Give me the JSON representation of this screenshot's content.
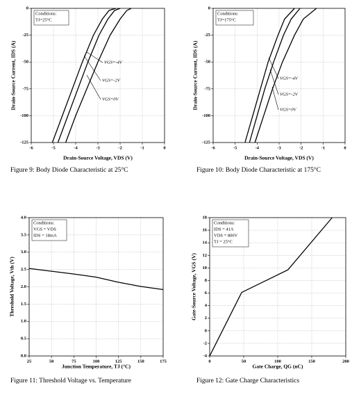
{
  "chart_data": [
    {
      "type": "line",
      "title": "Figure 9: Body Diode Characteristic at 25°C",
      "x_label": "Drain-Source Voltage, VDS (V)",
      "y_label": "Drain-Source Current, IDS (A)",
      "annotations": [
        "Conditions:",
        "TJ=25°C"
      ],
      "xlim": [
        -6,
        0
      ],
      "ylim": [
        -125,
        0
      ],
      "xticks": [
        -6,
        -5,
        -4,
        -3,
        -2,
        -1,
        0
      ],
      "yticks": [
        -125,
        -100,
        -75,
        -50,
        -25,
        0
      ],
      "grid": true,
      "series": [
        {
          "name": "VGS=-4V",
          "color": "#000000",
          "x": [
            -5.05,
            -4.6,
            -4.15,
            -3.7,
            -3.2,
            -2.8,
            -2.5,
            -2.2
          ],
          "values": [
            -125,
            -100,
            -75,
            -50,
            -25,
            -10,
            -2,
            0
          ]
        },
        {
          "name": "VGS=-2V",
          "color": "#000000",
          "x": [
            -4.8,
            -4.35,
            -3.9,
            -3.45,
            -2.95,
            -2.55,
            -2.25,
            -2.0
          ],
          "values": [
            -125,
            -100,
            -75,
            -50,
            -25,
            -10,
            -2,
            0
          ]
        },
        {
          "name": "VGS=0V",
          "color": "#000000",
          "x": [
            -4.45,
            -4.0,
            -3.5,
            -3.0,
            -2.45,
            -2.0,
            -1.7,
            -1.5
          ],
          "values": [
            -125,
            -100,
            -75,
            -50,
            -25,
            -10,
            -2,
            0
          ]
        }
      ]
    },
    {
      "type": "line",
      "title": "Figure 10: Body Diode Characteristic at 175°C",
      "x_label": "Drain-Source Voltage, VDS (V)",
      "y_label": "Drain-Source Current, IDS (A)",
      "annotations": [
        "Conditions:",
        "TJ=175°C"
      ],
      "xlim": [
        -6,
        0
      ],
      "ylim": [
        -125,
        0
      ],
      "xticks": [
        -6,
        -5,
        -4,
        -3,
        -2,
        -1,
        0
      ],
      "yticks": [
        -125,
        -100,
        -75,
        -50,
        -25,
        0
      ],
      "grid": true,
      "series": [
        {
          "name": "VGS=-4V",
          "color": "#000000",
          "x": [
            -4.55,
            -4.2,
            -3.85,
            -3.5,
            -3.05,
            -2.75,
            -2.3
          ],
          "values": [
            -125,
            -100,
            -75,
            -50,
            -25,
            -10,
            0
          ]
        },
        {
          "name": "VGS=-2V",
          "color": "#000000",
          "x": [
            -4.35,
            -4.0,
            -3.65,
            -3.25,
            -2.8,
            -2.45,
            -2.05
          ],
          "values": [
            -125,
            -100,
            -75,
            -50,
            -25,
            -10,
            0
          ]
        },
        {
          "name": "VGS=0V",
          "color": "#000000",
          "x": [
            -4.1,
            -3.7,
            -3.3,
            -2.85,
            -2.3,
            -1.9,
            -1.3
          ],
          "values": [
            -125,
            -100,
            -75,
            -50,
            -25,
            -10,
            0
          ]
        }
      ]
    },
    {
      "type": "line",
      "title": "Figure 11: Threshold Voltage vs. Temperature",
      "x_label": "Junction Temperature, TJ (°C)",
      "y_label": "Threshold Voltage, Vth (V)",
      "annotations": [
        "Conditions:",
        "VGS = VDS",
        "IDS = 18mA"
      ],
      "xlim": [
        25,
        175
      ],
      "ylim": [
        0,
        4
      ],
      "xticks": [
        25,
        50,
        75,
        100,
        125,
        150,
        175
      ],
      "yticks": [
        {
          "value": 0,
          "label": "0.0"
        },
        0.5,
        {
          "value": 1,
          "label": "1.0"
        },
        1.5,
        {
          "value": 2,
          "label": "2.0"
        },
        2.5,
        {
          "value": 3,
          "label": "3.0"
        },
        3.5,
        {
          "value": 4,
          "label": "4.0"
        }
      ],
      "grid": true,
      "series": [
        {
          "color": "#000000",
          "x": [
            25,
            50,
            75,
            100,
            125,
            150,
            175
          ],
          "values": [
            2.53,
            2.45,
            2.37,
            2.28,
            2.13,
            2.01,
            1.92
          ]
        }
      ]
    },
    {
      "type": "line",
      "title": "Figure 12: Gate Charge Characteristics",
      "x_label": "Gate Charge, QG (nC)",
      "y_label": "Gate-Source Voltage, VGS (V)",
      "annotations": [
        "Conditions:",
        "IDS = 41A",
        "VDS = 800V",
        "TJ = 25°C"
      ],
      "xlim": [
        0,
        200
      ],
      "ylim": [
        -4,
        18
      ],
      "xticks": [
        0,
        50,
        100,
        150,
        200
      ],
      "yticks": [
        -4,
        -2,
        0,
        2,
        4,
        6,
        8,
        10,
        12,
        14,
        16,
        18
      ],
      "grid": true,
      "series": [
        {
          "color": "#000000",
          "x": [
            0,
            47,
            115,
            180
          ],
          "values": [
            -4,
            6.1,
            9.7,
            18
          ]
        }
      ]
    }
  ]
}
